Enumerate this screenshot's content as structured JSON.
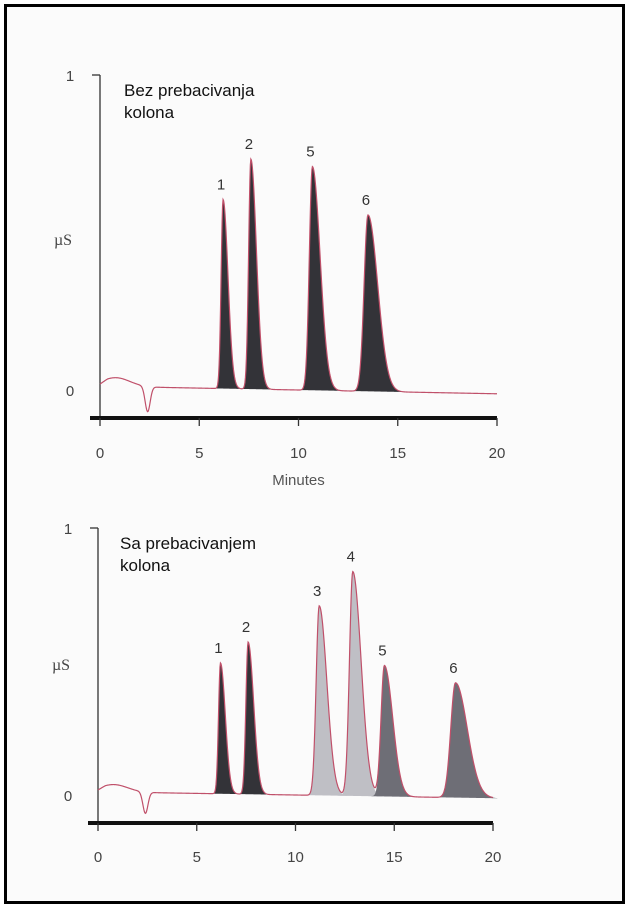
{
  "chart_data": [
    {
      "type": "line",
      "title_lines": [
        "Bez prebacivanja",
        "kolona"
      ],
      "xlabel": "Minutes",
      "ylabel": "µS",
      "xlim": [
        0,
        20
      ],
      "ylim": [
        0,
        1
      ],
      "x_ticks": [
        "0",
        "5",
        "10",
        "15",
        "20"
      ],
      "y_ticks": [
        "0",
        "1"
      ],
      "colors": {
        "trace": "#c0506a",
        "fill_dark": "#333338"
      },
      "peaks": [
        {
          "label": "1",
          "t": 6.2,
          "h": 0.6,
          "w": 0.35,
          "fill": "dark"
        },
        {
          "label": "2",
          "t": 7.6,
          "h": 0.73,
          "w": 0.4,
          "fill": "dark"
        },
        {
          "label": "5",
          "t": 10.7,
          "h": 0.71,
          "w": 0.55,
          "fill": "dark"
        },
        {
          "label": "6",
          "t": 13.5,
          "h": 0.56,
          "w": 0.7,
          "fill": "dark"
        }
      ]
    },
    {
      "type": "line",
      "title_lines": [
        "Sa prebacivanjem",
        "kolona"
      ],
      "xlabel": "",
      "ylabel": "µS",
      "xlim": [
        0,
        20
      ],
      "ylim": [
        0,
        1
      ],
      "x_ticks": [
        "0",
        "5",
        "10",
        "15",
        "20"
      ],
      "y_ticks": [
        "0",
        "1"
      ],
      "colors": {
        "trace": "#c0506a",
        "fill_dark": "#333338",
        "fill_light": "#bfbfc5",
        "fill_mid": "#6e6e76"
      },
      "peaks": [
        {
          "label": "1",
          "t": 6.2,
          "h": 0.49,
          "w": 0.35,
          "fill": "dark"
        },
        {
          "label": "2",
          "t": 7.6,
          "h": 0.57,
          "w": 0.4,
          "fill": "dark"
        },
        {
          "label": "3",
          "t": 11.2,
          "h": 0.71,
          "w": 0.55,
          "fill": "light"
        },
        {
          "label": "4",
          "t": 12.9,
          "h": 0.84,
          "w": 0.6,
          "fill": "light"
        },
        {
          "label": "5",
          "t": 14.5,
          "h": 0.49,
          "w": 0.6,
          "fill": "mid"
        },
        {
          "label": "6",
          "t": 18.1,
          "h": 0.43,
          "w": 0.85,
          "fill": "mid"
        }
      ]
    }
  ]
}
